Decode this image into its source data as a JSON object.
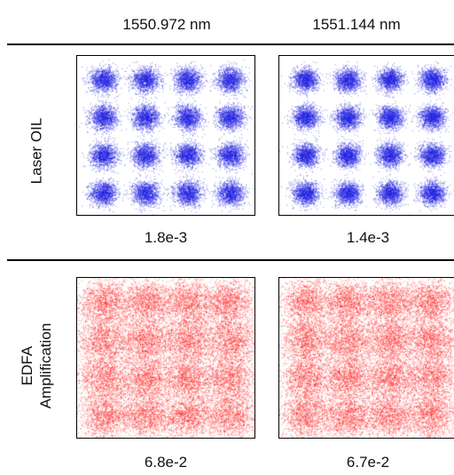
{
  "columns": [
    "1550.972 nm",
    "1551.144 nm"
  ],
  "rows": [
    {
      "label_lines": [
        "Laser OIL"
      ],
      "color": "#1f1fe0"
    },
    {
      "label_lines": [
        "EDFA",
        "Amplification"
      ],
      "color": "#ff1f1f"
    }
  ],
  "chart_data": [
    {
      "type": "scatter",
      "modulation": "16-QAM constellation",
      "row": 0,
      "column": 0,
      "wavelength": "1550.972 nm",
      "ber_label": "1.8e-3",
      "ber": 0.0018,
      "levels": [
        -3,
        -1,
        1,
        3
      ],
      "noise_sigma": 0.32,
      "color": "#1f1fe0"
    },
    {
      "type": "scatter",
      "modulation": "16-QAM constellation",
      "row": 0,
      "column": 1,
      "wavelength": "1551.144 nm",
      "ber_label": "1.4e-3",
      "ber": 0.0014,
      "levels": [
        -3,
        -1,
        1,
        3
      ],
      "noise_sigma": 0.3,
      "color": "#1f1fe0"
    },
    {
      "type": "scatter",
      "modulation": "16-QAM constellation",
      "row": 1,
      "column": 0,
      "wavelength": "1550.972 nm",
      "ber_label": "6.8e-2",
      "ber": 0.068,
      "levels": [
        -3,
        -1,
        1,
        3
      ],
      "noise_sigma": 0.62,
      "color": "#ff1f1f"
    },
    {
      "type": "scatter",
      "modulation": "16-QAM constellation",
      "row": 1,
      "column": 1,
      "wavelength": "1551.144 nm",
      "ber_label": "6.7e-2",
      "ber": 0.067,
      "levels": [
        -3,
        -1,
        1,
        3
      ],
      "noise_sigma": 0.61,
      "color": "#ff1f1f"
    }
  ]
}
